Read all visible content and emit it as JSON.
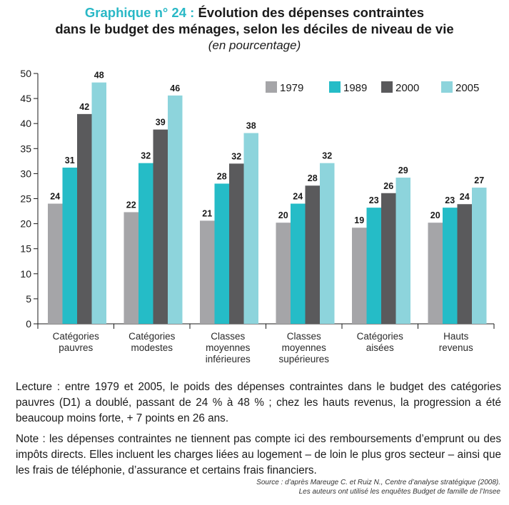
{
  "header": {
    "label": "Graphique n° 24 :",
    "title_line1": "Évolution des dépenses contraintes",
    "title_line2": "dans le budget des ménages, selon les déciles de niveau de vie",
    "subtitle": "(en pourcentage)"
  },
  "chart_data": {
    "type": "bar",
    "categories": [
      [
        "Catégories",
        "pauvres"
      ],
      [
        "Catégories",
        "modestes"
      ],
      [
        "Classes",
        "moyennes",
        "inférieures"
      ],
      [
        "Classes",
        "moyennes",
        "supérieures"
      ],
      [
        "Catégories",
        "aisées"
      ],
      [
        "Hauts",
        "revenus"
      ]
    ],
    "series": [
      {
        "name": "1979",
        "color": "#a5a5a8",
        "values": [
          24,
          22,
          21,
          20,
          19,
          20
        ],
        "heights": [
          24.0,
          22.3,
          20.6,
          20.2,
          19.2,
          20.2
        ]
      },
      {
        "name": "1989",
        "color": "#25bcc7",
        "values": [
          31,
          32,
          28,
          24,
          23,
          23
        ],
        "heights": [
          31.2,
          32.1,
          28.0,
          24.0,
          23.2,
          23.2
        ]
      },
      {
        "name": "2000",
        "color": "#5a5a5c",
        "values": [
          42,
          39,
          32,
          28,
          26,
          24
        ],
        "heights": [
          41.9,
          38.8,
          32.0,
          27.6,
          26.1,
          23.9
        ]
      },
      {
        "name": "2005",
        "color": "#8dd4dc",
        "values": [
          48,
          46,
          38,
          32,
          29,
          27
        ],
        "heights": [
          48.2,
          45.6,
          38.1,
          32.1,
          29.2,
          27.2
        ]
      }
    ],
    "yticks": [
      0,
      5,
      10,
      15,
      20,
      25,
      30,
      35,
      40,
      45,
      50
    ],
    "ylim": [
      0,
      50
    ],
    "legend_position": "top-right",
    "grid": false
  },
  "reading": {
    "lecture": "Lecture : entre 1979 et 2005, le poids des dépenses contraintes dans le budget des catégories pauvres (D1) a doublé, passant de 24 % à 48 % ; chez les hauts revenus, la progression a été beaucoup moins forte, + 7 points en 26 ans.",
    "note": "Note : les dépenses contraintes ne tiennent pas compte ici des remboursements d’emprunt ou des impôts directs. Elles incluent les charges liées au logement – de loin le plus gros secteur  – ainsi que les frais de téléphonie, d’assurance et certains frais financiers."
  },
  "source": {
    "line1": "Source : d’après Mareuge C. et Ruiz N., Centre d’analyse stratégique (2008).",
    "line2": "Les auteurs ont utilisé les enquêtes Budget de famille de l’Insee"
  }
}
